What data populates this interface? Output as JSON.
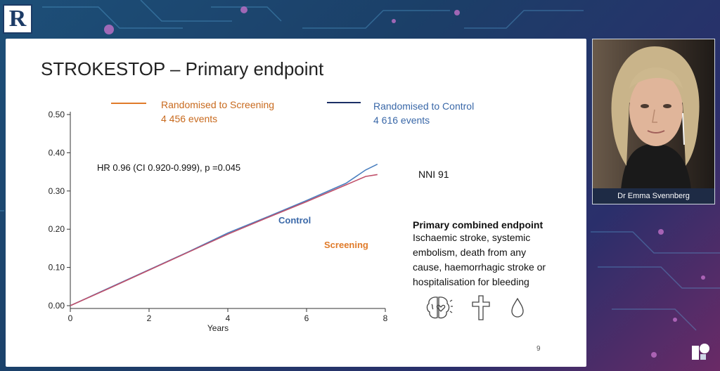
{
  "slide": {
    "title": "STROKESTOP – Primary endpoint",
    "page_number": "9",
    "legend": {
      "screening_label": "Randomised to Screening",
      "screening_events": "4 456 events",
      "control_label": "Randomised to Control",
      "control_events": "4 616 events"
    },
    "hr_text": "HR 0.96 (CI 0.920-0.999), p =0.045",
    "control_annotation": "Control",
    "screening_annotation": "Screening",
    "nni_text": "NNI 91",
    "endpoint_title": "Primary combined endpoint",
    "endpoint_desc": "Ischaemic stroke, systemic embolism, death from any cause, haemorrhagic stroke or hospitalisation for bleeding",
    "icons": [
      "brain-icon",
      "cross-icon",
      "blood-drop-icon"
    ]
  },
  "video": {
    "caption": "Dr Emma Svennberg"
  },
  "colors": {
    "screening": "#e07b2a",
    "control": "#1c2f66",
    "screening_line": "#c0506a",
    "control_line": "#4a7fbf",
    "screening_text": "#c86a1e",
    "control_text": "#3a68a8"
  },
  "chart_data": {
    "type": "line",
    "xlabel": "Years",
    "ylabel": "",
    "xlim": [
      0,
      8
    ],
    "ylim": [
      0,
      0.5
    ],
    "x_ticks": [
      "0",
      "2",
      "4",
      "6",
      "8"
    ],
    "y_ticks": [
      "0.00",
      "0.10",
      "0.20",
      "0.30",
      "0.40",
      "0.50"
    ],
    "series": [
      {
        "name": "Control",
        "x": [
          0,
          1,
          2,
          3,
          4,
          5,
          6,
          7,
          7.5,
          7.8
        ],
        "values": [
          0,
          0.047,
          0.094,
          0.141,
          0.19,
          0.232,
          0.275,
          0.32,
          0.355,
          0.37
        ]
      },
      {
        "name": "Screening",
        "x": [
          0,
          1,
          2,
          3,
          4,
          5,
          6,
          7,
          7.5,
          7.8
        ],
        "values": [
          0,
          0.046,
          0.093,
          0.14,
          0.187,
          0.23,
          0.272,
          0.316,
          0.338,
          0.343
        ]
      }
    ]
  }
}
